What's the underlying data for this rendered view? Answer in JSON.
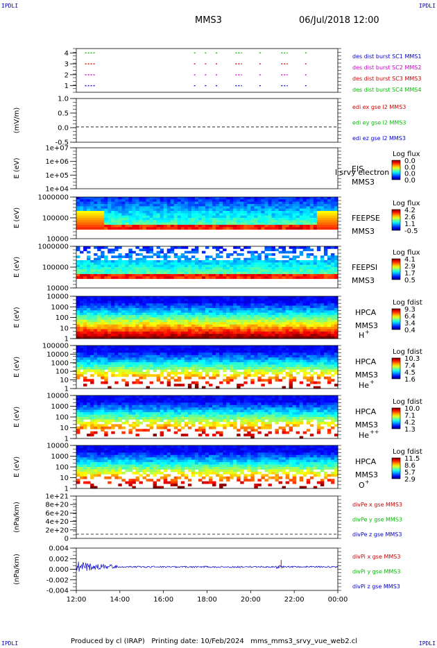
{
  "corner_tag": "IPDLI",
  "header": {
    "spacecraft": "MMS3",
    "datetime": "06/Jul/2018 12:00"
  },
  "footer": {
    "text": "Produced by cl (IRAP)   Printing date: 10/Feb/2024   mms_mms3_srvy_vue_web2.cl"
  },
  "time_axis": {
    "ticks": [
      "12:00",
      "14:00",
      "16:00",
      "18:00",
      "20:00",
      "22:00",
      "00:00"
    ]
  },
  "panels": [
    {
      "id": "burst",
      "type": "timeline",
      "yticks": [
        "4",
        "3",
        "2",
        "1"
      ],
      "legend": [
        {
          "text": "des dist burst SC1 MMS1",
          "color": "#0000cc"
        },
        {
          "text": "des dist burst SC2 MMS2",
          "color": "#cc00cc"
        },
        {
          "text": "des dist burst SC3 MMS3",
          "color": "#cc0000"
        },
        {
          "text": "des dist burst SC4 MMS4",
          "color": "#00bb00"
        }
      ],
      "intervals_hours": [
        [
          12.4,
          12.9
        ],
        [
          17.4,
          17.5
        ],
        [
          17.9,
          18.0
        ],
        [
          18.4,
          18.5
        ],
        [
          19.3,
          19.6
        ],
        [
          20.4,
          20.5
        ],
        [
          21.4,
          21.7
        ],
        [
          22.5,
          22.6
        ]
      ]
    },
    {
      "id": "edi",
      "type": "line",
      "ylabel": "(mV/m)",
      "yticks": [
        "1.0",
        "0.5",
        "0.0",
        "-0.5"
      ],
      "ylim": [
        -0.7,
        1.3
      ],
      "legend": [
        {
          "text": "edi ex gse l2 MMS3",
          "color": "#cc0000"
        },
        {
          "text": "edi ey gse l2 MMS3",
          "color": "#00bb00"
        },
        {
          "text": "edi ez gse l2 MMS3",
          "color": "#0000cc"
        }
      ]
    },
    {
      "id": "eis",
      "type": "empty-spectrogram",
      "ylabel": "E (eV)",
      "yticks": [
        "1e+07",
        "1e+06",
        "1e+05",
        "1e+04"
      ],
      "labels": [
        "EIS",
        "MMS3"
      ],
      "overlay": "l srvy electron to",
      "colorbar": {
        "title": "Log flux",
        "ticks": [
          "0.0",
          "0.0",
          "0.0",
          "0.0"
        ]
      }
    },
    {
      "id": "feepse",
      "type": "spectrogram",
      "ylabel": "E (eV)",
      "yticks": [
        "1000000",
        "100000",
        "10000"
      ],
      "labels": [
        "FEEPSE",
        "MMS3"
      ],
      "colorbar": {
        "title": "Log flux",
        "ticks": [
          "4.2",
          "2.6",
          "1.1",
          "-0.5"
        ]
      }
    },
    {
      "id": "feepsi",
      "type": "spectrogram",
      "ylabel": "E (eV)",
      "yticks": [
        "1000000",
        "100000",
        "10000"
      ],
      "labels": [
        "FEEPSI",
        "MMS3"
      ],
      "colorbar": {
        "title": "Log flux",
        "ticks": [
          "4.1",
          "2.9",
          "1.7",
          "0.5"
        ]
      }
    },
    {
      "id": "hpca_h",
      "type": "spectrogram",
      "ylabel": "E (eV)",
      "yticks": [
        "10000",
        "1000",
        "100",
        "10",
        "1"
      ],
      "labels": [
        "HPCA",
        "MMS3"
      ],
      "species": "H",
      "charge": "+",
      "colorbar": {
        "title": "Log fdist",
        "ticks": [
          "9.3",
          "6.4",
          "3.4",
          "0.4"
        ]
      }
    },
    {
      "id": "hpca_he",
      "type": "spectrogram",
      "ylabel": "E (eV)",
      "yticks": [
        "100000",
        "10000",
        "1000",
        "100",
        "10",
        "1"
      ],
      "labels": [
        "HPCA",
        "MMS3"
      ],
      "species": "He",
      "charge": "+",
      "colorbar": {
        "title": "Log fdist",
        "ticks": [
          "10.3",
          "7.4",
          "4.5",
          "1.6"
        ]
      }
    },
    {
      "id": "hpca_he2",
      "type": "spectrogram",
      "ylabel": "E (eV)",
      "yticks": [
        "10000",
        "1000",
        "100",
        "10",
        "1"
      ],
      "labels": [
        "HPCA",
        "MMS3"
      ],
      "species": "He",
      "charge": "++",
      "colorbar": {
        "title": "Log fdist",
        "ticks": [
          "10.0",
          "7.1",
          "4.2",
          "1.3"
        ]
      }
    },
    {
      "id": "hpca_o",
      "type": "spectrogram",
      "ylabel": "E (eV)",
      "yticks": [
        "10000",
        "1000",
        "100",
        "10",
        "1"
      ],
      "labels": [
        "HPCA",
        "MMS3"
      ],
      "species": "O",
      "charge": "+",
      "colorbar": {
        "title": "Log fdist",
        "ticks": [
          "11.5",
          "8.6",
          "5.7",
          "2.9"
        ]
      }
    },
    {
      "id": "divpe",
      "type": "line",
      "ylabel": "(nPa/km)",
      "yticks": [
        "1e+21",
        "8e+20",
        "6e+20",
        "4e+20",
        "2e+20",
        "0"
      ],
      "legend": [
        {
          "text": "divPe x gse MMS3",
          "color": "#cc0000"
        },
        {
          "text": "divPe y gse MMS3",
          "color": "#00bb00"
        },
        {
          "text": "divPe z gse MMS3",
          "color": "#0000cc"
        }
      ]
    },
    {
      "id": "divpi",
      "type": "line",
      "ylabel": "(nPa/km)",
      "yticks": [
        "0.004",
        "0.002",
        "0.000",
        "-0.002",
        "-0.004"
      ],
      "ylim": [
        -0.005,
        0.004
      ],
      "legend": [
        {
          "text": "divPi x gse MMS3",
          "color": "#cc0000"
        },
        {
          "text": "divPi y gse MMS3",
          "color": "#00bb00"
        },
        {
          "text": "divPi z gse MMS3",
          "color": "#0000cc"
        }
      ]
    }
  ],
  "chart_data": {
    "type": "line",
    "title": "MMS3",
    "xlabel": "",
    "x_range_hours": [
      12,
      24
    ],
    "panels": [
      "burst",
      "edi",
      "eis",
      "feepse",
      "feepsi",
      "hpca_h",
      "hpca_he",
      "hpca_he2",
      "hpca_o",
      "divpe",
      "divpi"
    ]
  }
}
